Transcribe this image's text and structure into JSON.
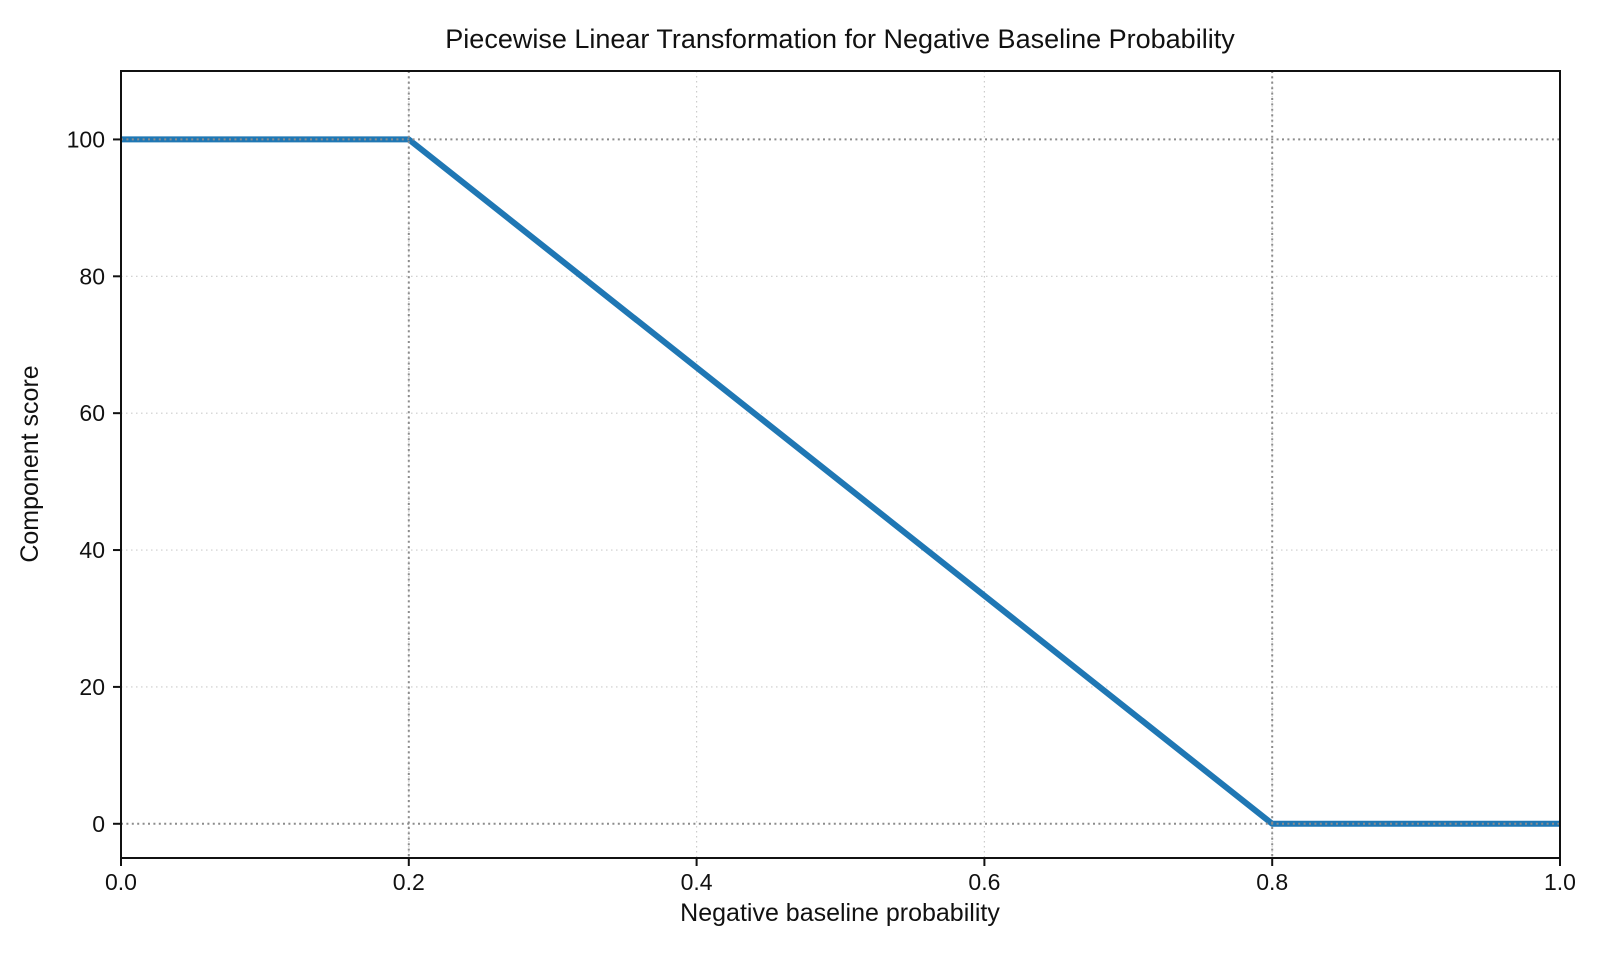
{
  "figure": {
    "background": "#ffffff"
  },
  "chart_data": {
    "type": "line",
    "title": "Piecewise Linear Transformation for Negative Baseline Probability",
    "xlabel": "Negative baseline probability",
    "ylabel": "Component score",
    "xlim": [
      0.0,
      1.0
    ],
    "ylim": [
      -5,
      110
    ],
    "series": [
      {
        "name": "component-score-transformation",
        "color": "#1f77b4",
        "line_width": 6,
        "points": [
          [
            0.0,
            100
          ],
          [
            0.2,
            100
          ],
          [
            0.8,
            0
          ],
          [
            1.0,
            0
          ]
        ]
      }
    ],
    "breakpoints": {
      "flat_high_until_x": 0.2,
      "reaches_zero_at_x": 0.8,
      "high_value": 100,
      "low_value": 0
    },
    "xticks": {
      "values": [
        0.0,
        0.2,
        0.4,
        0.6,
        0.8,
        1.0
      ],
      "labels": [
        "0.0",
        "0.2",
        "0.4",
        "0.6",
        "0.8",
        "1.0"
      ]
    },
    "yticks": {
      "values": [
        0,
        20,
        40,
        60,
        80,
        100
      ],
      "labels": [
        "0",
        "20",
        "40",
        "60",
        "80",
        "100"
      ]
    },
    "grid": {
      "on": true,
      "style": "dotted",
      "color": "#cccccc",
      "x_values": [
        0.2,
        0.4,
        0.6,
        0.8
      ],
      "y_values": [
        20,
        40,
        60,
        80
      ]
    },
    "reference_lines": {
      "style": "dotted",
      "color": "#8c8c8c",
      "x": [
        0.2,
        0.8
      ],
      "y": [
        0,
        100
      ]
    },
    "legend": "none",
    "spine_color": "#111111",
    "text_color": "#111111"
  }
}
